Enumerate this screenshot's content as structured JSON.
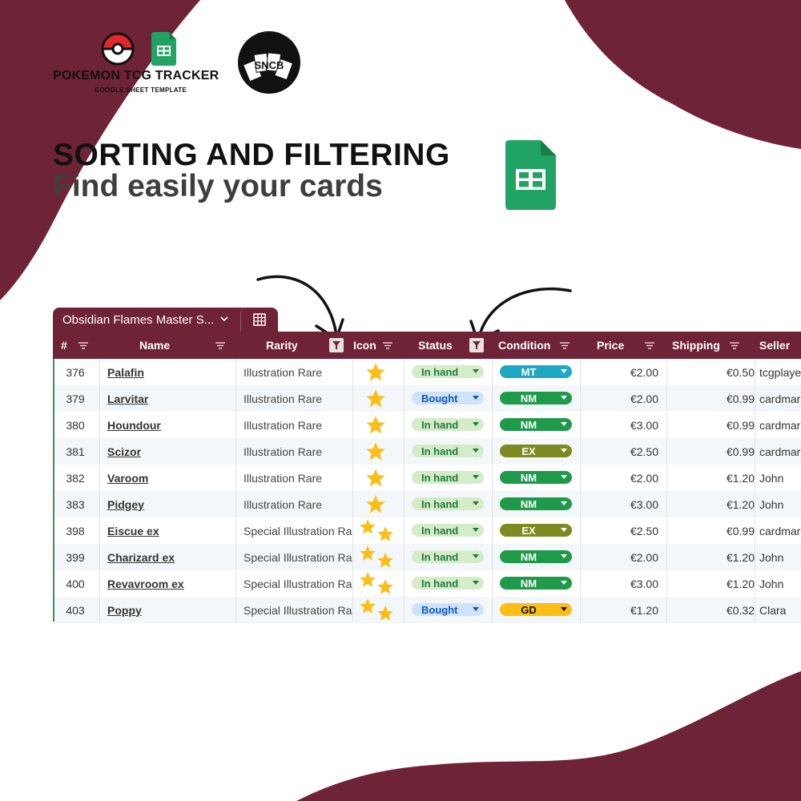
{
  "branding": {
    "title": "POKEMON TCG TRACKER",
    "subtitle": "GOOGLE SHEET TEMPLATE",
    "logo_text": "SNCB"
  },
  "headline": "SORTING AND FILTERING",
  "subheadline": "Find easily your cards",
  "sheet": {
    "tab_label": "Obsidian Flames Master S...",
    "headers": {
      "num": "#",
      "name": "Name",
      "rarity": "Rarity",
      "icon": "Icon",
      "status": "Status",
      "condition": "Condition",
      "price": "Price",
      "shipping": "Shipping",
      "seller": "Seller"
    },
    "rows": [
      {
        "num": "376",
        "name": "Palafin",
        "rarity": "Illustration Rare",
        "stars": 1,
        "status": "In hand",
        "condition": "MT",
        "price": "€2.00",
        "shipping": "€0.50",
        "seller": "tcgplayer"
      },
      {
        "num": "379",
        "name": "Larvitar",
        "rarity": "Illustration Rare",
        "stars": 1,
        "status": "Bought",
        "condition": "NM",
        "price": "€2.00",
        "shipping": "€0.99",
        "seller": "cardmar"
      },
      {
        "num": "380",
        "name": "Houndour",
        "rarity": "Illustration Rare",
        "stars": 1,
        "status": "In hand",
        "condition": "NM",
        "price": "€3.00",
        "shipping": "€0.99",
        "seller": "cardmar"
      },
      {
        "num": "381",
        "name": "Scizor",
        "rarity": "Illustration Rare",
        "stars": 1,
        "status": "In hand",
        "condition": "EX",
        "price": "€2.50",
        "shipping": "€0.99",
        "seller": "cardmar"
      },
      {
        "num": "382",
        "name": "Varoom",
        "rarity": "Illustration Rare",
        "stars": 1,
        "status": "In hand",
        "condition": "NM",
        "price": "€2.00",
        "shipping": "€1.20",
        "seller": "John"
      },
      {
        "num": "383",
        "name": "Pidgey",
        "rarity": "Illustration Rare",
        "stars": 1,
        "status": "In hand",
        "condition": "NM",
        "price": "€3.00",
        "shipping": "€1.20",
        "seller": "John"
      },
      {
        "num": "398",
        "name": "Eiscue ex",
        "rarity": "Special Illustration Ra",
        "stars": 2,
        "status": "In hand",
        "condition": "EX",
        "price": "€2.50",
        "shipping": "€0.99",
        "seller": "cardmar"
      },
      {
        "num": "399",
        "name": "Charizard ex",
        "rarity": "Special Illustration Ra",
        "stars": 2,
        "status": "In hand",
        "condition": "NM",
        "price": "€2.00",
        "shipping": "€1.20",
        "seller": "John"
      },
      {
        "num": "400",
        "name": "Revavroom ex",
        "rarity": "Special Illustration Ra",
        "stars": 2,
        "status": "In hand",
        "condition": "NM",
        "price": "€3.00",
        "shipping": "€1.20",
        "seller": "John"
      },
      {
        "num": "403",
        "name": "Poppy",
        "rarity": "Special Illustration Ra",
        "stars": 2,
        "status": "Bought",
        "condition": "GD",
        "price": "€1.20",
        "shipping": "€0.32",
        "seller": "Clara"
      }
    ]
  },
  "colors": {
    "brand": "#6f2337",
    "status_in_hand_bg": "#d4ecc9",
    "status_in_hand_text": "#1e7a3b",
    "status_bought_bg": "#cfe3f8",
    "status_bought_text": "#0d57b7",
    "cond_MT": "#1ea8c1",
    "cond_NM": "#1f9a4a",
    "cond_EX": "#7d8a21",
    "cond_GD": "#fbbd16",
    "star": "#fbbd16"
  },
  "icons": [
    "pokeball-icon",
    "google-sheets-icon",
    "sncb-logo",
    "filter-icon",
    "funnel-filter-icon",
    "table-icon",
    "chevron-down-icon",
    "star-icon",
    "arrow-icon"
  ]
}
